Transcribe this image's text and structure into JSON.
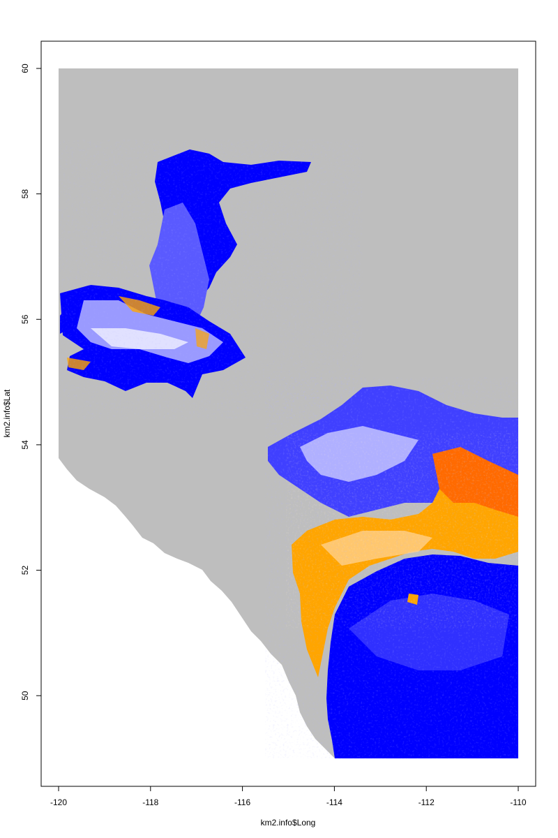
{
  "chart_data": {
    "type": "heatmap",
    "title": "",
    "xlabel": "km2.info$Long",
    "ylabel": "km2.info$Lat",
    "xlim": [
      -120,
      -110
    ],
    "ylim": [
      49,
      60
    ],
    "x_ticks": [
      "-120",
      "-118",
      "-116",
      "-114",
      "-112",
      "-110"
    ],
    "y_ticks": [
      "50",
      "52",
      "54",
      "56",
      "58",
      "60"
    ],
    "grid": false,
    "legend": "none",
    "colors": {
      "background_grid": "#bebebe",
      "low": "#0000ff",
      "mid": "#ffffff",
      "high": "#ff4500",
      "orange": "#ffa500"
    }
  }
}
